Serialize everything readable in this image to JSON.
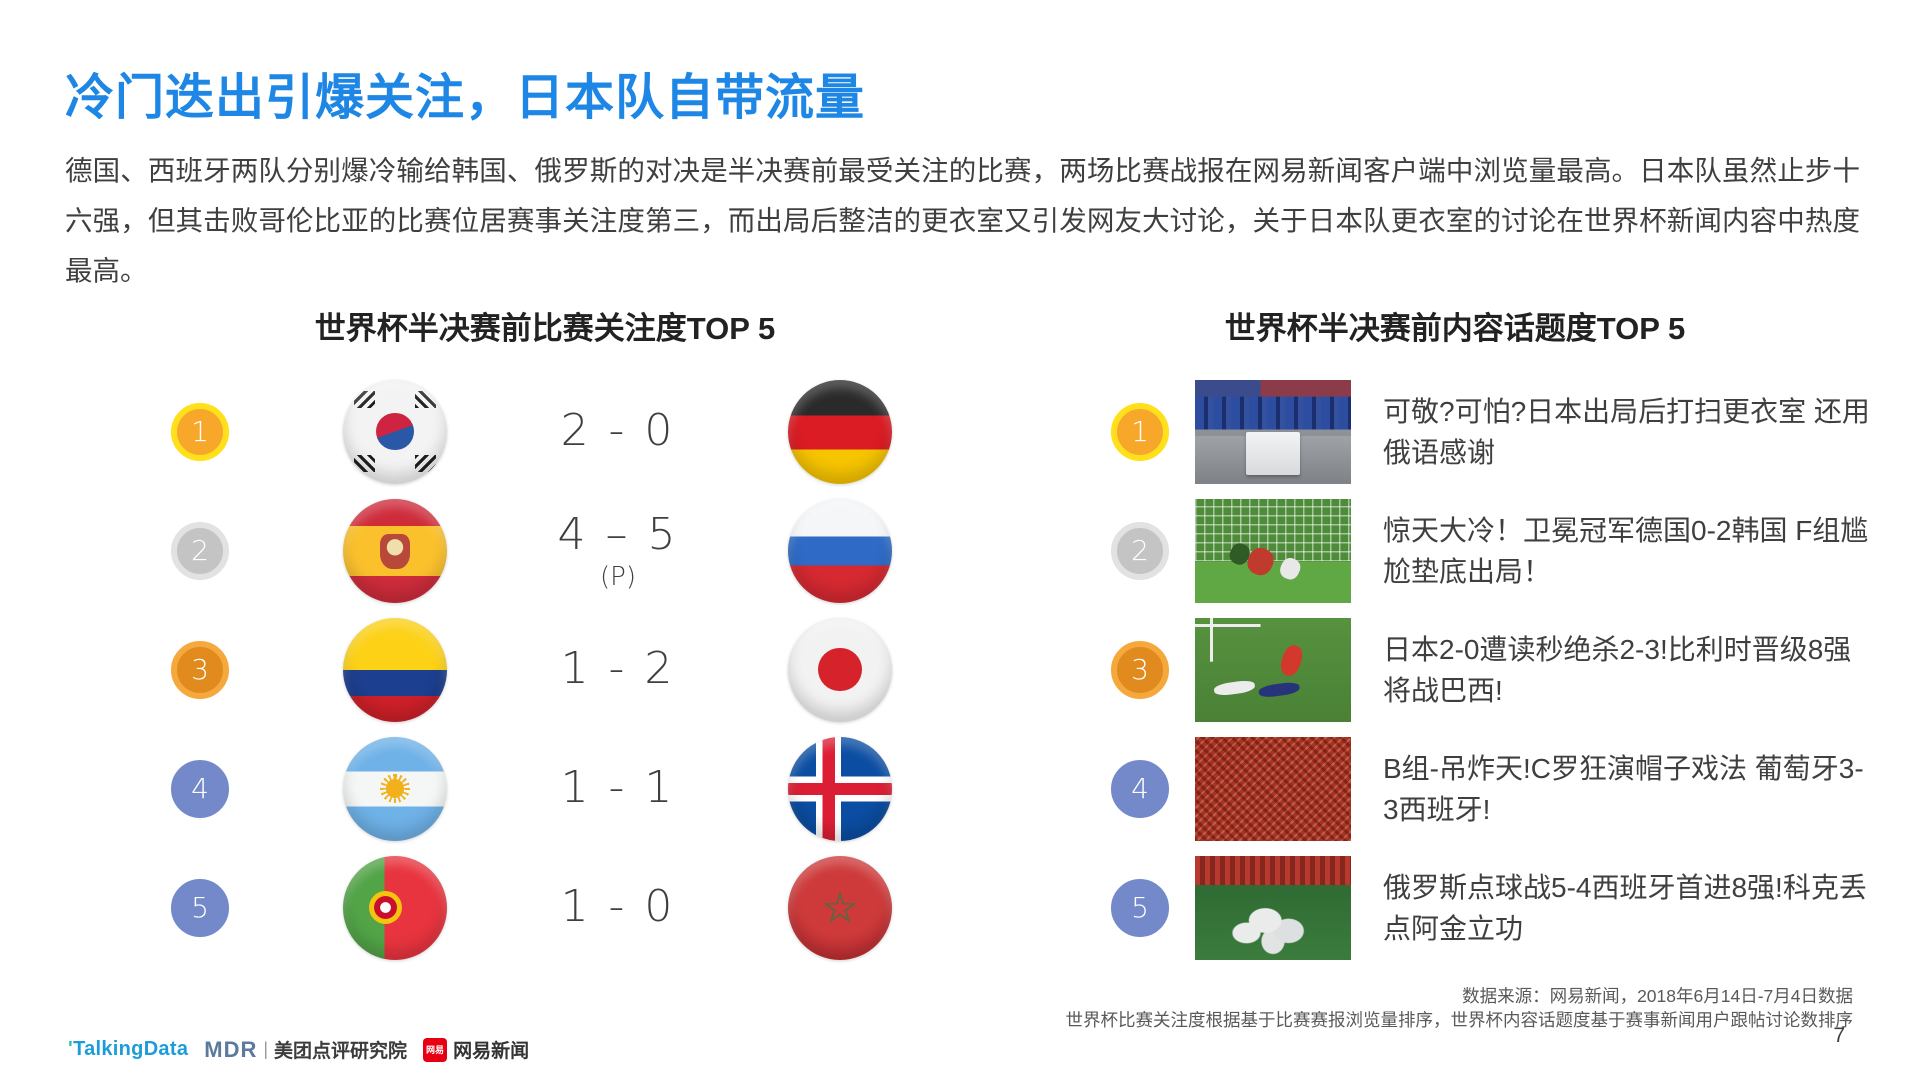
{
  "title": "冷门迭出引爆关注，日本队自带流量",
  "intro": "德国、西班牙两队分别爆冷输给韩国、俄罗斯的对决是半决赛前最受关注的比赛，两场比赛战报在网易新闻客户端中浏览量最高。日本队虽然止步十六强，但其击败哥伦比亚的比赛位居赛事关注度第三，而出局后整洁的更衣室又引发网友大讨论，关于日本队更衣室的讨论在世界杯新闻内容中热度最高。",
  "left_panel": {
    "heading": "世界杯半决赛前比赛关注度TOP 5",
    "matches": [
      {
        "rank": "1",
        "home_flag": "south-korea",
        "score": "2 - 0",
        "note": "",
        "away_flag": "germany"
      },
      {
        "rank": "2",
        "home_flag": "spain",
        "score": "4 – 5",
        "note": "(P)",
        "away_flag": "russia"
      },
      {
        "rank": "3",
        "home_flag": "colombia",
        "score": "1 - 2",
        "note": "",
        "away_flag": "japan"
      },
      {
        "rank": "4",
        "home_flag": "argentina",
        "score": "1 - 1",
        "note": "",
        "away_flag": "iceland"
      },
      {
        "rank": "5",
        "home_flag": "portugal",
        "score": "1 - 0",
        "note": "",
        "away_flag": "morocco"
      }
    ]
  },
  "right_panel": {
    "heading": "世界杯半决赛前内容话题度TOP 5",
    "news": [
      {
        "rank": "1",
        "thumb": "locker-room",
        "headline": "可敬?可怕?日本出局后打扫更衣室 还用俄语感谢"
      },
      {
        "rank": "2",
        "thumb": "goal-net",
        "headline": "惊天大冷！卫冕冠军德国0-2韩国 F组尴尬垫底出局！"
      },
      {
        "rank": "3",
        "thumb": "pitch-fallen",
        "headline": "日本2-0遭读秒绝杀2-3!比利时晋级8强将战巴西!"
      },
      {
        "rank": "4",
        "thumb": "red-crowd",
        "headline": "B组-吊炸天!C罗狂演帽子戏法 葡萄牙3-3西班牙!"
      },
      {
        "rank": "5",
        "thumb": "celebration",
        "headline": "俄罗斯点球战5-4西班牙首进8强!科克丢点阿金立功"
      }
    ]
  },
  "footer": {
    "source_line1": "数据来源：网易新闻，2018年6月14日-7月4日数据",
    "source_line2": "世界杯比赛关注度根据基于比赛赛报浏览量排序，世界杯内容话题度基于赛事新闻用户跟帖讨论数排序",
    "page_number": "7",
    "logos": {
      "talkingdata": "TalkingData",
      "mdr": "MDR",
      "meituan": "美团点评研究院",
      "netease_icon": "网易",
      "netease": "网易新闻"
    }
  },
  "colors": {
    "title_blue": "#1E87E6",
    "body_text": "#3F3F3F",
    "gold_medal": "#F7A82B",
    "silver_medal": "#C4C4C4",
    "bronze_medal": "#E18A1E",
    "plain_rank_blue": "#7389C9",
    "ribbon_red": "#FB4A16"
  }
}
